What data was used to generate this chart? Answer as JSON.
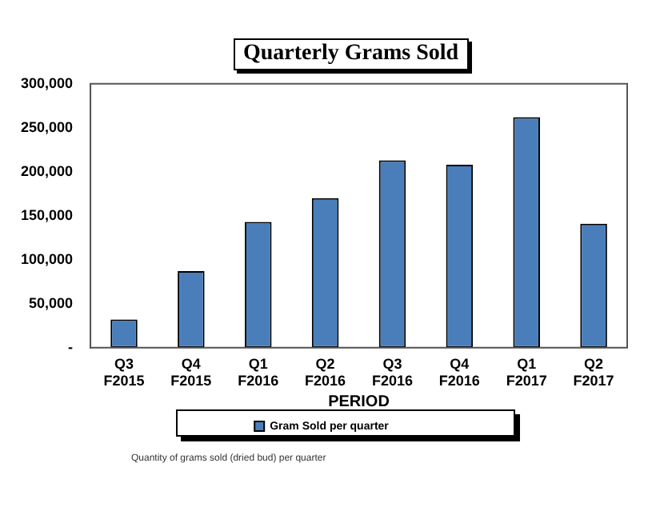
{
  "chart_data": {
    "type": "bar",
    "title": "Quarterly Grams Sold",
    "xlabel": "PERIOD",
    "categories": [
      "Q3\nF2015",
      "Q4\nF2015",
      "Q1\nF2016",
      "Q2\nF2016",
      "Q3\nF2016",
      "Q4\nF2016",
      "Q1\nF2017",
      "Q2\nF2017"
    ],
    "series": [
      {
        "name": "Gram Sold per quarter",
        "color": "#4a7ebb",
        "values": [
          32000,
          87000,
          143000,
          170000,
          213000,
          208000,
          262000,
          141000
        ]
      }
    ],
    "ylim": [
      0,
      300000
    ],
    "yticks": [
      {
        "value": 0,
        "label": "-"
      },
      {
        "value": 50000,
        "label": "50,000"
      },
      {
        "value": 100000,
        "label": "100,000"
      },
      {
        "value": 150000,
        "label": "150,000"
      },
      {
        "value": 200000,
        "label": "200,000"
      },
      {
        "value": 250000,
        "label": "250,000"
      },
      {
        "value": 300000,
        "label": "300,000"
      }
    ],
    "legend": "bottom",
    "grid": false,
    "annotations": [
      "Quantity of grams sold (dried bud) per quarter"
    ]
  }
}
